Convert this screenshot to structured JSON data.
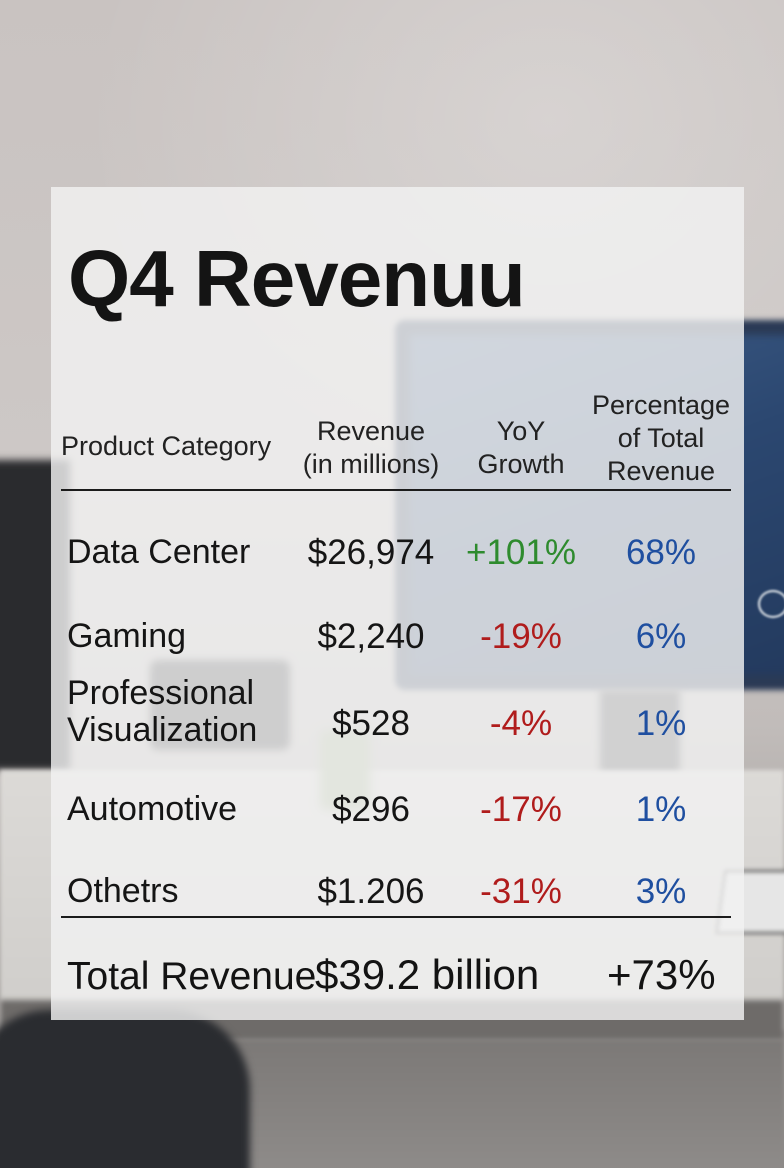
{
  "title": "Q4 Revenuu",
  "headers": {
    "category": "Product Category",
    "revenue_line1": "Revenue",
    "revenue_line2": "(in millions)",
    "yoy_line1": "YoY",
    "yoy_line2": "Growth",
    "pct_line1": "Percentage",
    "pct_line2": "of Total",
    "pct_line3": "Revenue"
  },
  "rows": [
    {
      "category": "Data Center",
      "revenue": "$26,974",
      "yoy": "+101%",
      "pct": "68%"
    },
    {
      "category": "Gaming",
      "revenue": "$2,240",
      "yoy": "-19%",
      "pct": "6%"
    },
    {
      "category_line1": "Professional",
      "category_line2": "Visualization",
      "revenue": "$528",
      "yoy": "-4%",
      "pct": "1%"
    },
    {
      "category": "Automotive",
      "revenue": "$296",
      "yoy": "-17%",
      "pct": "1%"
    },
    {
      "category": "Othetrs",
      "revenue": "$1.206",
      "yoy": "-31%",
      "pct": "3%"
    }
  ],
  "total": {
    "label": "Total Revenue",
    "value": "$39.2 billion",
    "growth": "+73%"
  },
  "colors": {
    "positive": "#2e8b2e",
    "negative": "#b01c1c",
    "percentage": "#1f4fa0"
  }
}
